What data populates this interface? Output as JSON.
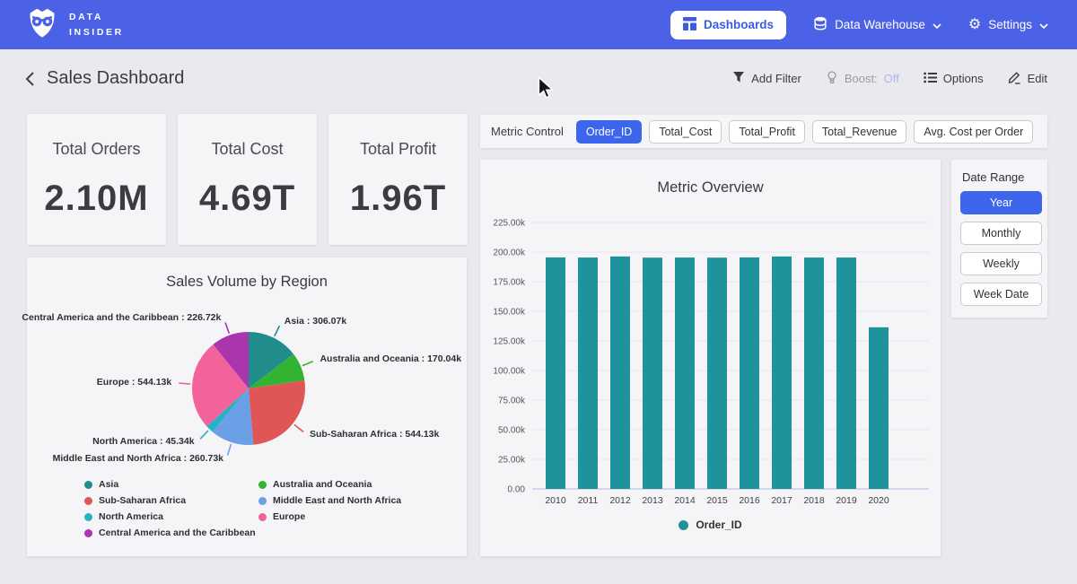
{
  "brand": {
    "line1": "DATA",
    "line2": "INSIDER"
  },
  "navbar": {
    "dashboards": "Dashboards",
    "data_warehouse": "Data Warehouse",
    "settings": "Settings"
  },
  "header": {
    "title": "Sales Dashboard",
    "add_filter": "Add Filter",
    "boost_label": "Boost:",
    "boost_value": "Off",
    "options": "Options",
    "edit": "Edit"
  },
  "kpis": [
    {
      "label": "Total Orders",
      "value": "2.10M"
    },
    {
      "label": "Total Cost",
      "value": "4.69T"
    },
    {
      "label": "Total Profit",
      "value": "1.96T"
    }
  ],
  "metric_control": {
    "label": "Metric Control",
    "options": [
      "Order_ID",
      "Total_Cost",
      "Total_Profit",
      "Total_Revenue",
      "Avg. Cost per Order"
    ],
    "selected": "Order_ID"
  },
  "date_range": {
    "label": "Date Range",
    "options": [
      "Year",
      "Monthly",
      "Weekly",
      "Week Date"
    ],
    "selected": "Year"
  },
  "colors": {
    "navbar_bg": "#4b61e6",
    "accent": "#3e66ec",
    "bar": "#1f939c",
    "boost_off": "#a9b6ef"
  },
  "chart_data": [
    {
      "type": "pie",
      "title": "Sales Volume by Region",
      "slices": [
        {
          "label": "Asia",
          "value": 306070,
          "color": "#218c8c"
        },
        {
          "label": "Australia and Oceania",
          "value": 170040,
          "color": "#32b332"
        },
        {
          "label": "Sub-Saharan Africa",
          "value": 544130,
          "color": "#e05656"
        },
        {
          "label": "Middle East and North Africa",
          "value": 260730,
          "color": "#6b9fe6"
        },
        {
          "label": "North America",
          "value": 45340,
          "color": "#24b2c4"
        },
        {
          "label": "Europe",
          "value": 544130,
          "color": "#f2639b"
        },
        {
          "label": "Central America and the Caribbean",
          "value": 226720,
          "color": "#a936ad"
        }
      ],
      "legend_columns": [
        [
          "Asia",
          "Sub-Saharan Africa",
          "North America",
          "Central America and the Caribbean"
        ],
        [
          "Australia and Oceania",
          "Middle East and North Africa",
          "Europe"
        ]
      ]
    },
    {
      "type": "bar",
      "title": "Metric Overview",
      "categories": [
        "2010",
        "2011",
        "2012",
        "2013",
        "2014",
        "2015",
        "2016",
        "2017",
        "2018",
        "2019",
        "2020"
      ],
      "series": [
        {
          "name": "Order_ID",
          "values": [
            195500,
            195400,
            196300,
            195300,
            195400,
            195300,
            195500,
            196300,
            195400,
            195400,
            136500
          ]
        }
      ],
      "ylim": [
        0,
        225000
      ],
      "ytick_step": 25000,
      "legend": [
        "Order_ID"
      ],
      "legend_position": "bottom",
      "grid": true
    }
  ]
}
